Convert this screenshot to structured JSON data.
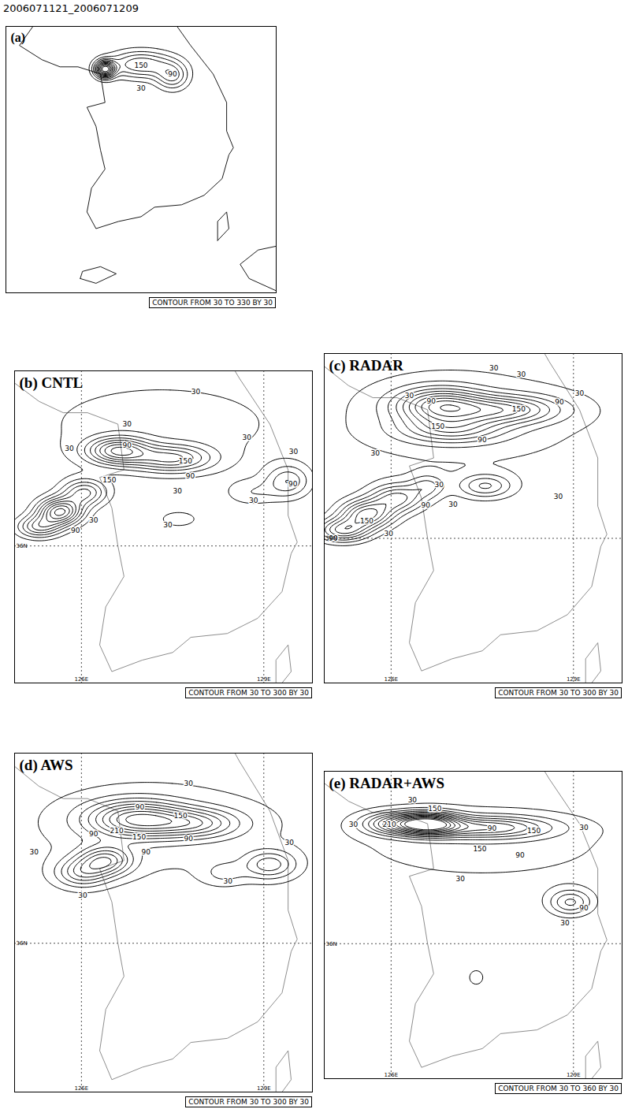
{
  "title": "2006071121_2006071209",
  "coastline": [
    [
      [
        125.1,
        39.6
      ],
      [
        125.1,
        38.6
      ],
      [
        124.8,
        38.2
      ],
      [
        125.3,
        37.9
      ],
      [
        125.7,
        37.75
      ],
      [
        126.1,
        37.75
      ],
      [
        126.6,
        37.6
      ],
      [
        126.7,
        37.0
      ],
      [
        126.3,
        36.9
      ],
      [
        126.5,
        36.5
      ],
      [
        126.6,
        36.0
      ],
      [
        126.7,
        35.6
      ],
      [
        126.4,
        35.2
      ],
      [
        126.3,
        34.7
      ],
      [
        126.5,
        34.35
      ],
      [
        127.0,
        34.5
      ],
      [
        127.5,
        34.6
      ],
      [
        127.8,
        34.8
      ],
      [
        128.4,
        34.85
      ],
      [
        128.9,
        35.05
      ],
      [
        129.3,
        35.4
      ],
      [
        129.45,
        35.9
      ],
      [
        129.55,
        36.05
      ],
      [
        129.4,
        36.4
      ],
      [
        129.4,
        37.0
      ],
      [
        129.1,
        37.6
      ],
      [
        128.6,
        38.2
      ],
      [
        128.3,
        38.6
      ],
      [
        127.6,
        39.1
      ],
      [
        127.5,
        39.6
      ],
      [
        125.1,
        39.6
      ]
    ],
    [
      [
        126.15,
        33.3
      ],
      [
        126.5,
        33.2
      ],
      [
        126.95,
        33.4
      ],
      [
        126.6,
        33.55
      ],
      [
        126.2,
        33.45
      ],
      [
        126.15,
        33.3
      ]
    ],
    [
      [
        129.2,
        34.1
      ],
      [
        129.45,
        34.35
      ],
      [
        129.4,
        34.7
      ],
      [
        129.2,
        34.5
      ],
      [
        129.2,
        34.1
      ]
    ],
    [
      [
        130.6,
        33.0
      ],
      [
        129.9,
        33.3
      ],
      [
        129.7,
        33.6
      ],
      [
        130.1,
        33.9
      ],
      [
        130.6,
        34.0
      ]
    ]
  ],
  "chart_data": [
    {
      "type": "contour",
      "title": "(a)",
      "caption": "CONTOUR FROM 30 TO 330 BY 30",
      "contour_levels": {
        "from": 30,
        "to": 330,
        "by": 30
      },
      "xlim": [
        124.5,
        130.5
      ],
      "ylim": [
        33.0,
        38.6
      ],
      "grid": false,
      "tick_labels": false,
      "color": "#000000",
      "cells": [
        {
          "lon": 126.7,
          "lat": 37.7,
          "peak": 330,
          "sx": 0.15,
          "sy": 0.12
        },
        {
          "lon": 127.5,
          "lat": 37.8,
          "peak": 150,
          "sx": 0.5,
          "sy": 0.2
        },
        {
          "lon": 128.2,
          "lat": 37.55,
          "peak": 120,
          "sx": 0.25,
          "sy": 0.2
        }
      ],
      "contour_labels": [
        {
          "lon": 127.5,
          "lat": 37.78,
          "value": 150
        },
        {
          "lon": 128.2,
          "lat": 37.6,
          "value": 90
        },
        {
          "lon": 127.5,
          "lat": 37.3,
          "value": 30
        }
      ]
    },
    {
      "type": "contour",
      "title": "(b) CNTL",
      "caption": "CONTOUR FROM 30 TO 300 BY 30",
      "contour_levels": {
        "from": 30,
        "to": 300,
        "by": 30
      },
      "xlim": [
        124.9,
        129.8
      ],
      "ylim": [
        34.2,
        38.3
      ],
      "grid": true,
      "color": "#808080",
      "xticks": [
        {
          "value": 126,
          "label": "126E"
        },
        {
          "value": 129,
          "label": "129E"
        }
      ],
      "yticks": [
        {
          "value": 36,
          "label": "36N"
        }
      ],
      "cells": [
        {
          "lon": 126.6,
          "lat": 37.25,
          "peak": 210,
          "sx": 0.35,
          "sy": 0.12
        },
        {
          "lon": 127.5,
          "lat": 37.15,
          "peak": 160,
          "sx": 0.45,
          "sy": 0.12
        },
        {
          "lon": 125.3,
          "lat": 36.25,
          "peak": 150,
          "sx": 0.25,
          "sy": 0.1
        },
        {
          "lon": 125.65,
          "lat": 36.45,
          "peak": 270,
          "sx": 0.25,
          "sy": 0.12
        },
        {
          "lon": 126.05,
          "lat": 36.7,
          "peak": 150,
          "sx": 0.25,
          "sy": 0.12
        },
        {
          "lon": 127.3,
          "lat": 37.6,
          "peak": 45,
          "sx": 1.8,
          "sy": 0.5
        },
        {
          "lon": 129.4,
          "lat": 36.85,
          "peak": 110,
          "sx": 0.25,
          "sy": 0.15
        },
        {
          "lon": 128.8,
          "lat": 36.7,
          "peak": 50,
          "sx": 0.3,
          "sy": 0.12
        },
        {
          "lon": 127.6,
          "lat": 36.35,
          "peak": 40,
          "sx": 0.3,
          "sy": 0.1
        }
      ],
      "contour_labels": [
        {
          "lon": 127.88,
          "lat": 38.02,
          "value": 30
        },
        {
          "lon": 126.75,
          "lat": 37.6,
          "value": 30
        },
        {
          "lon": 126.75,
          "lat": 37.32,
          "value": 90
        },
        {
          "lon": 125.8,
          "lat": 37.28,
          "value": 30
        },
        {
          "lon": 127.71,
          "lat": 37.11,
          "value": 150
        },
        {
          "lon": 126.46,
          "lat": 36.86,
          "value": 150
        },
        {
          "lon": 127.79,
          "lat": 36.92,
          "value": 90
        },
        {
          "lon": 127.58,
          "lat": 36.72,
          "value": 30
        },
        {
          "lon": 128.72,
          "lat": 37.42,
          "value": 30
        },
        {
          "lon": 129.49,
          "lat": 37.24,
          "value": 30
        },
        {
          "lon": 129.48,
          "lat": 36.81,
          "value": 90
        },
        {
          "lon": 128.83,
          "lat": 36.6,
          "value": 30
        },
        {
          "lon": 127.42,
          "lat": 36.27,
          "value": 30
        },
        {
          "lon": 126.2,
          "lat": 36.34,
          "value": 30
        },
        {
          "lon": 125.9,
          "lat": 36.2,
          "value": 90
        }
      ]
    },
    {
      "type": "contour",
      "title": "(c) RADAR",
      "caption": "CONTOUR FROM 30 TO 300 BY 30",
      "contour_levels": {
        "from": 30,
        "to": 300,
        "by": 30
      },
      "xlim": [
        124.9,
        129.8
      ],
      "ylim": [
        34.2,
        38.3
      ],
      "grid": true,
      "color": "#808080",
      "xticks": [
        {
          "value": 126,
          "label": "126E"
        },
        {
          "value": 129,
          "label": "129E"
        }
      ],
      "yticks": [
        {
          "value": 36,
          "label": "36N"
        }
      ],
      "cells": [
        {
          "lon": 126.8,
          "lat": 37.65,
          "peak": 220,
          "sx": 0.5,
          "sy": 0.15
        },
        {
          "lon": 127.9,
          "lat": 37.6,
          "peak": 170,
          "sx": 0.6,
          "sy": 0.12
        },
        {
          "lon": 127.0,
          "lat": 37.35,
          "peak": 120,
          "sx": 0.6,
          "sy": 0.12
        },
        {
          "lon": 125.2,
          "lat": 36.1,
          "peak": 180,
          "sx": 0.3,
          "sy": 0.1
        },
        {
          "lon": 125.6,
          "lat": 36.3,
          "peak": 210,
          "sx": 0.3,
          "sy": 0.12
        },
        {
          "lon": 126.1,
          "lat": 36.5,
          "peak": 150,
          "sx": 0.3,
          "sy": 0.12
        },
        {
          "lon": 126.6,
          "lat": 36.65,
          "peak": 80,
          "sx": 0.2,
          "sy": 0.1
        },
        {
          "lon": 127.55,
          "lat": 36.65,
          "peak": 110,
          "sx": 0.3,
          "sy": 0.1
        },
        {
          "lon": 127.2,
          "lat": 37.5,
          "peak": 45,
          "sx": 2.0,
          "sy": 0.6
        }
      ],
      "contour_labels": [
        {
          "lon": 127.69,
          "lat": 38.12,
          "value": 30
        },
        {
          "lon": 128.14,
          "lat": 38.04,
          "value": 30
        },
        {
          "lon": 126.3,
          "lat": 37.77,
          "value": 30
        },
        {
          "lon": 126.66,
          "lat": 37.71,
          "value": 90
        },
        {
          "lon": 128.1,
          "lat": 37.61,
          "value": 150
        },
        {
          "lon": 128.77,
          "lat": 37.7,
          "value": 90
        },
        {
          "lon": 129.1,
          "lat": 37.8,
          "value": 30
        },
        {
          "lon": 126.77,
          "lat": 37.39,
          "value": 150
        },
        {
          "lon": 127.5,
          "lat": 37.22,
          "value": 90
        },
        {
          "lon": 125.74,
          "lat": 37.06,
          "value": 30
        },
        {
          "lon": 126.79,
          "lat": 36.67,
          "value": 30
        },
        {
          "lon": 126.57,
          "lat": 36.41,
          "value": 90
        },
        {
          "lon": 127.02,
          "lat": 36.42,
          "value": 30
        },
        {
          "lon": 125.6,
          "lat": 36.21,
          "value": 150
        },
        {
          "lon": 125.96,
          "lat": 36.06,
          "value": 30
        },
        {
          "lon": 125.05,
          "lat": 36.0,
          "value": 90
        },
        {
          "lon": 128.75,
          "lat": 36.52,
          "value": 30
        }
      ]
    },
    {
      "type": "contour",
      "title": "(d) AWS",
      "caption": "CONTOUR FROM 30 TO 300 BY 30",
      "contour_levels": {
        "from": 30,
        "to": 300,
        "by": 30
      },
      "xlim": [
        124.9,
        129.8
      ],
      "ylim": [
        34.2,
        38.3
      ],
      "grid": true,
      "color": "#808080",
      "xticks": [
        {
          "value": 126,
          "label": "126E"
        },
        {
          "value": 129,
          "label": "129E"
        }
      ],
      "yticks": [
        {
          "value": 36,
          "label": "36N"
        }
      ],
      "cells": [
        {
          "lon": 126.9,
          "lat": 37.5,
          "peak": 230,
          "sx": 0.55,
          "sy": 0.15
        },
        {
          "lon": 127.9,
          "lat": 37.45,
          "peak": 140,
          "sx": 0.5,
          "sy": 0.12
        },
        {
          "lon": 126.0,
          "lat": 36.85,
          "peak": 120,
          "sx": 0.3,
          "sy": 0.12
        },
        {
          "lon": 126.4,
          "lat": 37.0,
          "peak": 170,
          "sx": 0.3,
          "sy": 0.12
        },
        {
          "lon": 129.1,
          "lat": 36.95,
          "peak": 120,
          "sx": 0.3,
          "sy": 0.12
        },
        {
          "lon": 128.35,
          "lat": 36.85,
          "peak": 50,
          "sx": 0.25,
          "sy": 0.1
        },
        {
          "lon": 127.3,
          "lat": 37.4,
          "peak": 45,
          "sx": 2.0,
          "sy": 0.55
        }
      ],
      "contour_labels": [
        {
          "lon": 127.76,
          "lat": 37.93,
          "value": 30
        },
        {
          "lon": 126.96,
          "lat": 37.65,
          "value": 90
        },
        {
          "lon": 127.63,
          "lat": 37.54,
          "value": 150
        },
        {
          "lon": 126.2,
          "lat": 37.32,
          "value": 90
        },
        {
          "lon": 126.58,
          "lat": 37.36,
          "value": 210
        },
        {
          "lon": 126.95,
          "lat": 37.28,
          "value": 150
        },
        {
          "lon": 127.76,
          "lat": 37.26,
          "value": 90
        },
        {
          "lon": 125.22,
          "lat": 37.1,
          "value": 30
        },
        {
          "lon": 127.06,
          "lat": 37.1,
          "value": 90
        },
        {
          "lon": 126.02,
          "lat": 36.58,
          "value": 30
        },
        {
          "lon": 128.41,
          "lat": 36.75,
          "value": 30
        },
        {
          "lon": 129.42,
          "lat": 37.22,
          "value": 30
        }
      ]
    },
    {
      "type": "contour",
      "title": "(e) RADAR+AWS",
      "caption": "CONTOUR FROM 30 TO 360 BY 30",
      "contour_levels": {
        "from": 30,
        "to": 360,
        "by": 30
      },
      "xlim": [
        124.9,
        129.8
      ],
      "ylim": [
        34.2,
        38.3
      ],
      "grid": true,
      "color": "#808080",
      "xticks": [
        {
          "value": 126,
          "label": "126E"
        },
        {
          "value": 129,
          "label": "129E"
        }
      ],
      "yticks": [
        {
          "value": 36,
          "label": "36N"
        }
      ],
      "cells": [
        {
          "lon": 126.6,
          "lat": 37.6,
          "peak": 330,
          "sx": 0.35,
          "sy": 0.1
        },
        {
          "lon": 127.6,
          "lat": 37.55,
          "peak": 170,
          "sx": 0.7,
          "sy": 0.1
        },
        {
          "lon": 126.0,
          "lat": 37.6,
          "peak": 150,
          "sx": 0.35,
          "sy": 0.1
        },
        {
          "lon": 128.95,
          "lat": 36.55,
          "peak": 120,
          "sx": 0.25,
          "sy": 0.12
        },
        {
          "lon": 127.4,
          "lat": 35.55,
          "peak": 45,
          "sx": 0.12,
          "sy": 0.1
        },
        {
          "lon": 127.5,
          "lat": 37.35,
          "peak": 45,
          "sx": 2.0,
          "sy": 0.45
        }
      ],
      "contour_labels": [
        {
          "lon": 126.35,
          "lat": 37.91,
          "value": 30
        },
        {
          "lon": 126.72,
          "lat": 37.8,
          "value": 150
        },
        {
          "lon": 125.38,
          "lat": 37.59,
          "value": 30
        },
        {
          "lon": 125.97,
          "lat": 37.59,
          "value": 210
        },
        {
          "lon": 127.66,
          "lat": 37.54,
          "value": 90
        },
        {
          "lon": 128.35,
          "lat": 37.5,
          "value": 150
        },
        {
          "lon": 129.17,
          "lat": 37.55,
          "value": 30
        },
        {
          "lon": 127.46,
          "lat": 37.26,
          "value": 150
        },
        {
          "lon": 128.12,
          "lat": 37.18,
          "value": 90
        },
        {
          "lon": 127.14,
          "lat": 36.86,
          "value": 30
        },
        {
          "lon": 129.17,
          "lat": 36.48,
          "value": 90
        },
        {
          "lon": 128.86,
          "lat": 36.28,
          "value": 30
        }
      ]
    }
  ]
}
